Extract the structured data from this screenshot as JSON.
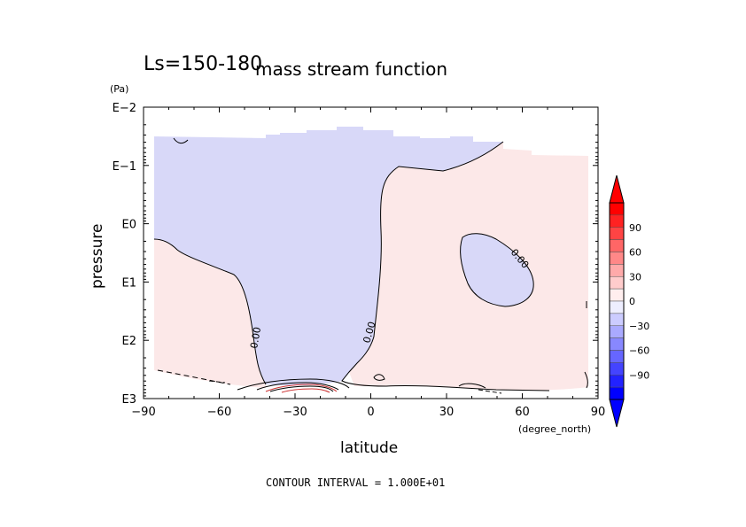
{
  "chart_data": {
    "type": "heatmap",
    "title": "mass stream function",
    "subtitle": "Ls=150-180",
    "xlabel": "latitude",
    "xunit": "(degree_north)",
    "ylabel": "pressure",
    "yunit": "(Pa)",
    "x_range": [
      -90,
      90
    ],
    "x_ticks": [
      -90,
      -60,
      -30,
      0,
      30,
      60,
      90
    ],
    "x_tick_labels": [
      "−90",
      "−60",
      "−30",
      "0",
      "30",
      "60",
      "90"
    ],
    "y_scale": "log",
    "y_reversed": true,
    "y_range": [
      0.01,
      1000
    ],
    "y_ticks": [
      0.01,
      0.1,
      1,
      10,
      100,
      1000
    ],
    "y_tick_labels": [
      "E−2",
      "E−1",
      "E0",
      "E1",
      "E2",
      "E3"
    ],
    "contour_interval": 10,
    "contour_labels": [
      "0.00",
      "0.00",
      "0.00"
    ],
    "colorbar": {
      "tick_values": [
        90,
        60,
        30,
        0,
        -30,
        -60,
        -90
      ],
      "tick_labels": [
        "90",
        "60",
        "30",
        "0",
        "−30",
        "−60",
        "−90"
      ],
      "colors": [
        "#ff0000",
        "#ff2222",
        "#ff4444",
        "#ff6666",
        "#ff8888",
        "#ffaaaa",
        "#ffcccc",
        "#ffeeee",
        "#eeeeff",
        "#ccccff",
        "#aaaaff",
        "#8888ff",
        "#6666ff",
        "#4444ff",
        "#2222ff",
        "#0000ff"
      ],
      "extend_color_top": "#ff0000",
      "extend_color_bottom": "#0000ff"
    },
    "region_colors": {
      "negative": "#d8d8f8",
      "positive": "#fce8e8"
    },
    "footer": "CONTOUR INTERVAL = 1.000E+01"
  }
}
